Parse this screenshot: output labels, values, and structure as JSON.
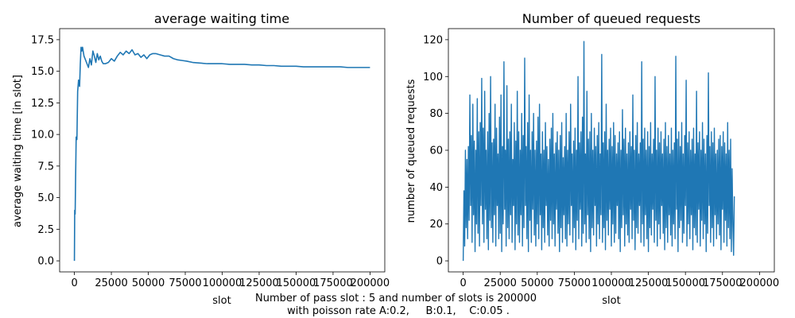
{
  "chart_data": [
    {
      "type": "line",
      "title": "average waiting time",
      "xlabel": "slot",
      "ylabel": "average waiting time [in slot]",
      "xlim": [
        -10000,
        210000
      ],
      "ylim": [
        -0.875,
        18.375
      ],
      "xticks": [
        0,
        25000,
        50000,
        75000,
        100000,
        125000,
        150000,
        175000,
        200000
      ],
      "yticks": [
        0.0,
        2.5,
        5.0,
        7.5,
        10.0,
        12.5,
        15.0,
        17.5
      ],
      "xtick_labels": [
        "0",
        "25000",
        "50000",
        "75000",
        "100000",
        "125000",
        "150000",
        "175000",
        "200000"
      ],
      "ytick_labels": [
        "0.0",
        "2.5",
        "5.0",
        "7.5",
        "10.0",
        "12.5",
        "15.0",
        "17.5"
      ],
      "grid": false,
      "color": "#1f77b4",
      "series": [
        {
          "x": [
            0,
            200,
            500,
            800,
            1200,
            1700,
            2200,
            2800,
            3500,
            4000,
            4500,
            5000,
            5500,
            6500,
            7500,
            8500,
            9500,
            10500,
            11500,
            12500,
            13500,
            14500,
            15500,
            16500,
            17500,
            18500,
            19500,
            21000,
            23000,
            25000,
            27000,
            29000,
            31000,
            33000,
            35000,
            37000,
            39000,
            41000,
            43000,
            45000,
            47000,
            49000,
            51000,
            53000,
            55000,
            58000,
            61000,
            64000,
            67000,
            70000,
            73000,
            76000,
            80000,
            85000,
            90000,
            95000,
            100000,
            105000,
            110000,
            115000,
            120000,
            125000,
            130000,
            135000,
            140000,
            145000,
            150000,
            155000,
            160000,
            165000,
            170000,
            175000,
            180000,
            185000,
            190000,
            195000,
            200000
          ],
          "y": [
            0.0,
            4.0,
            3.7,
            6.5,
            9.8,
            9.6,
            13.4,
            14.3,
            13.8,
            15.6,
            16.9,
            16.6,
            16.9,
            16.2,
            15.9,
            15.6,
            15.3,
            16.0,
            15.5,
            16.6,
            16.2,
            15.7,
            16.4,
            15.9,
            16.2,
            15.8,
            15.6,
            15.6,
            15.7,
            16.0,
            15.8,
            16.2,
            16.5,
            16.3,
            16.6,
            16.4,
            16.7,
            16.3,
            16.4,
            16.1,
            16.3,
            16.0,
            16.3,
            16.4,
            16.4,
            16.3,
            16.2,
            16.2,
            16.0,
            15.9,
            15.85,
            15.8,
            15.7,
            15.65,
            15.6,
            15.6,
            15.6,
            15.55,
            15.55,
            15.55,
            15.5,
            15.5,
            15.45,
            15.45,
            15.4,
            15.4,
            15.4,
            15.35,
            15.35,
            15.35,
            15.35,
            15.35,
            15.35,
            15.3,
            15.3,
            15.3,
            15.3
          ]
        }
      ]
    },
    {
      "type": "line",
      "title": "Number of queued requests",
      "xlabel": "slot",
      "ylabel": "number of queued requests",
      "xlim": [
        -10000,
        210000
      ],
      "ylim": [
        -6,
        126
      ],
      "xticks": [
        0,
        25000,
        50000,
        75000,
        100000,
        125000,
        150000,
        175000,
        200000
      ],
      "yticks": [
        0,
        20,
        40,
        60,
        80,
        100,
        120
      ],
      "xtick_labels": [
        "0",
        "25000",
        "50000",
        "75000",
        "100000",
        "125000",
        "150000",
        "175000",
        "200000"
      ],
      "ytick_labels": [
        "0",
        "20",
        "40",
        "60",
        "80",
        "100",
        "120"
      ],
      "grid": false,
      "color": "#1f77b4",
      "series": [
        {
          "x_start": 0,
          "x_step": 500,
          "y": [
            0,
            38,
            8,
            60,
            18,
            55,
            12,
            62,
            22,
            90,
            30,
            68,
            10,
            85,
            25,
            65,
            5,
            60,
            20,
            88,
            15,
            70,
            8,
            75,
            30,
            99,
            20,
            72,
            10,
            92,
            28,
            60,
            12,
            70,
            6,
            80,
            22,
            100,
            18,
            64,
            10,
            66,
            25,
            85,
            8,
            72,
            30,
            58,
            12,
            78,
            15,
            90,
            5,
            62,
            20,
            108,
            28,
            60,
            8,
            95,
            18,
            66,
            12,
            70,
            25,
            85,
            10,
            55,
            30,
            75,
            6,
            65,
            20,
            92,
            14,
            70,
            10,
            60,
            25,
            80,
            8,
            68,
            18,
            110,
            30,
            62,
            12,
            75,
            5,
            90,
            22,
            60,
            10,
            70,
            28,
            80,
            14,
            60,
            8,
            65,
            20,
            78,
            12,
            85,
            25,
            58,
            6,
            70,
            18,
            60,
            10,
            75,
            30,
            62,
            14,
            55,
            8,
            66,
            22,
            72,
            12,
            80,
            20,
            58,
            8,
            64,
            28,
            70,
            15,
            60,
            5,
            68,
            18,
            75,
            10,
            56,
            25,
            62,
            12,
            80,
            8,
            60,
            20,
            70,
            14,
            85,
            30,
            58,
            10,
            65,
            18,
            72,
            6,
            60,
            22,
            100,
            12,
            64,
            28,
            70,
            8,
            78,
            15,
            119,
            20,
            58,
            10,
            92,
            25,
            66,
            12,
            70,
            5,
            80,
            18,
            60,
            14,
            72,
            30,
            62,
            8,
            68,
            20,
            75,
            12,
            58,
            25,
            112,
            10,
            64,
            18,
            70,
            6,
            85,
            22,
            60,
            14,
            66,
            28,
            72,
            8,
            62,
            20,
            75,
            10,
            68,
            15,
            58,
            30,
            64,
            12,
            70,
            5,
            60,
            18,
            82,
            25,
            66,
            8,
            72,
            20,
            58,
            14,
            64,
            10,
            70,
            28,
            62,
            12,
            90,
            22,
            60,
            6,
            68,
            18,
            75,
            15,
            58,
            30,
            64,
            10,
            108,
            20,
            66,
            8,
            72,
            25,
            60,
            12,
            70,
            5,
            62,
            18,
            75,
            14,
            58,
            28,
            66,
            10,
            100,
            22,
            60,
            8,
            72,
            20,
            64,
            12,
            70,
            30,
            58,
            15,
            66,
            6,
            75,
            18,
            62,
            10,
            68,
            25,
            58,
            14,
            72,
            8,
            60,
            20,
            64,
            12,
            111,
            28,
            66,
            5,
            70,
            18,
            62,
            22,
            75,
            10,
            58,
            15,
            68,
            30,
            98,
            8,
            64,
            20,
            70,
            12,
            60,
            25,
            66,
            6,
            72,
            18,
            58,
            14,
            92,
            10,
            64,
            28,
            70,
            8,
            60,
            22,
            75,
            12,
            66,
            20,
            58,
            5,
            68,
            15,
            102,
            30,
            62,
            10,
            70,
            18,
            64,
            8,
            72,
            25,
            58,
            12,
            60,
            20,
            66,
            14,
            68,
            6,
            62,
            28,
            70,
            10,
            64,
            22,
            58,
            8,
            75,
            18,
            60,
            12,
            66,
            5,
            50,
            20,
            3,
            35
          ]
        }
      ]
    }
  ],
  "annotation": {
    "line1": "Number of pass slot : 5 and number of slots is 200000",
    "line2": "with poisson rate A:0.2,     B:0.1,    C:0.05 .",
    "color": "#ff0000"
  }
}
